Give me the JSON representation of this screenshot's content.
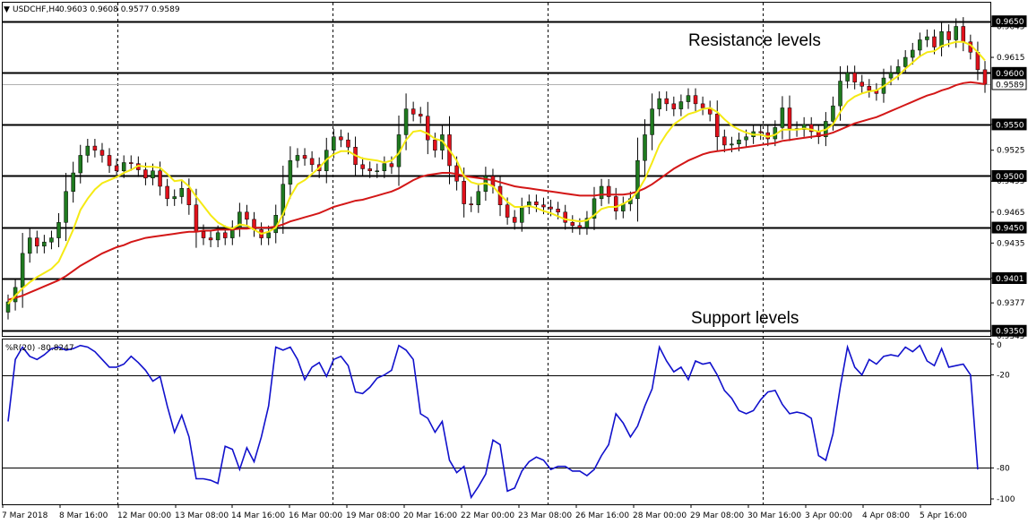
{
  "header": {
    "symbol": "USDCHF,H4",
    "ohlc": "0.9603 0.9608 0.9577 0.9589",
    "arrow": "▼"
  },
  "colors": {
    "background": "#ffffff",
    "bull_candle": "#1f7a1f",
    "bear_candle": "#e0111b",
    "ma_fast": "#f5ea14",
    "ma_slow": "#d31717",
    "oscillator": "#1111cc",
    "level_line": "#000000",
    "grid": "#000000"
  },
  "annotations": {
    "resistance": "Resistance levels",
    "support": "Support levels"
  },
  "chart_data": [
    {
      "type": "candlestick",
      "title": "USDCHF,H4",
      "ylim": [
        0.9345,
        0.9668
      ],
      "grid": "vertical dashed",
      "y_ticks": [
        "0.9645",
        "0.9615",
        "0.9550",
        "0.9525",
        "0.9495",
        "0.9465",
        "0.9435",
        "0.9401",
        "0.9377",
        "0.9345"
      ],
      "x_ticks": [
        "7 Mar 2018",
        "8 Mar 16:00",
        "12 Mar 00:00",
        "13 Mar 08:00",
        "14 Mar 16:00",
        "16 Mar 00:00",
        "19 Mar 08:00",
        "20 Mar 16:00",
        "22 Mar 00:00",
        "23 Mar 08:00",
        "26 Mar 16:00",
        "28 Mar 00:00",
        "29 Mar 08:00",
        "30 Mar 16:00",
        "3 Apr 00:00",
        "4 Apr 08:00",
        "5 Apr 16:00"
      ],
      "levels": [
        {
          "value": 0.965,
          "label": "0.9650"
        },
        {
          "value": 0.96,
          "label": "0.9600"
        },
        {
          "value": 0.955,
          "label": "0.9550"
        },
        {
          "value": 0.95,
          "label": "0.9500"
        },
        {
          "value": 0.945,
          "label": "0.9450"
        },
        {
          "value": 0.9401,
          "label": "0.9401"
        },
        {
          "value": 0.935,
          "label": "0.9350"
        }
      ],
      "current_price": {
        "value": 0.9589,
        "label": "0.9589"
      },
      "closes": [
        0.9378,
        0.9392,
        0.9425,
        0.944,
        0.9432,
        0.9436,
        0.944,
        0.9455,
        0.9485,
        0.9503,
        0.952,
        0.9529,
        0.9525,
        0.952,
        0.951,
        0.9505,
        0.9513,
        0.9512,
        0.9506,
        0.9498,
        0.9505,
        0.949,
        0.9478,
        0.948,
        0.9488,
        0.9472,
        0.9446,
        0.944,
        0.9438,
        0.9445,
        0.944,
        0.945,
        0.9465,
        0.9458,
        0.9448,
        0.944,
        0.9445,
        0.9462,
        0.9492,
        0.9515,
        0.952,
        0.9517,
        0.9511,
        0.9505,
        0.9525,
        0.9538,
        0.9535,
        0.9528,
        0.9511,
        0.9507,
        0.9505,
        0.9505,
        0.9512,
        0.9509,
        0.954,
        0.9565,
        0.956,
        0.9558,
        0.9535,
        0.9525,
        0.954,
        0.951,
        0.9495,
        0.9473,
        0.9472,
        0.9485,
        0.95,
        0.949,
        0.9472,
        0.946,
        0.9455,
        0.947,
        0.9475,
        0.9472,
        0.947,
        0.9468,
        0.9465,
        0.9455,
        0.9452,
        0.945,
        0.9459,
        0.9478,
        0.949,
        0.948,
        0.9466,
        0.9473,
        0.9478,
        0.9515,
        0.954,
        0.9565,
        0.9575,
        0.957,
        0.9565,
        0.9572,
        0.9578,
        0.957,
        0.9566,
        0.956,
        0.9538,
        0.953,
        0.9531,
        0.9535,
        0.9538,
        0.9543,
        0.9542,
        0.9536,
        0.9547,
        0.9566,
        0.9546,
        0.9545,
        0.955,
        0.9543,
        0.9538,
        0.9553,
        0.9568,
        0.9592,
        0.96,
        0.9591,
        0.9587,
        0.9583,
        0.958,
        0.9595,
        0.96,
        0.9606,
        0.9615,
        0.9622,
        0.9632,
        0.9635,
        0.9625,
        0.964,
        0.9632,
        0.9645,
        0.963,
        0.962,
        0.9603,
        0.9589
      ],
      "ma_fast_values": [
        0.9376,
        0.9384,
        0.9391,
        0.9397,
        0.9402,
        0.9406,
        0.941,
        0.9417,
        0.9432,
        0.9448,
        0.9467,
        0.9478,
        0.9487,
        0.9493,
        0.9496,
        0.9499,
        0.9503,
        0.9506,
        0.951,
        0.9509,
        0.9509,
        0.9508,
        0.9502,
        0.9495,
        0.9496,
        0.949,
        0.948,
        0.9471,
        0.9462,
        0.9455,
        0.9451,
        0.9449,
        0.9453,
        0.9452,
        0.9448,
        0.9444,
        0.9446,
        0.945,
        0.9463,
        0.948,
        0.9492,
        0.9496,
        0.9502,
        0.9508,
        0.9516,
        0.9521,
        0.9524,
        0.9524,
        0.952,
        0.9517,
        0.9516,
        0.9515,
        0.9513,
        0.9515,
        0.9522,
        0.9535,
        0.9543,
        0.9544,
        0.9541,
        0.9536,
        0.9534,
        0.9525,
        0.9515,
        0.95,
        0.9494,
        0.9492,
        0.9493,
        0.949,
        0.9482,
        0.9475,
        0.947,
        0.947,
        0.9471,
        0.9469,
        0.9466,
        0.9464,
        0.9461,
        0.9458,
        0.9457,
        0.9456,
        0.9457,
        0.9462,
        0.9468,
        0.947,
        0.947,
        0.9473,
        0.9477,
        0.9485,
        0.9497,
        0.9513,
        0.953,
        0.9541,
        0.955,
        0.9555,
        0.956,
        0.9562,
        0.9565,
        0.9566,
        0.9562,
        0.9555,
        0.9549,
        0.9545,
        0.9542,
        0.954,
        0.954,
        0.9538,
        0.954,
        0.9545,
        0.9545,
        0.9545,
        0.9546,
        0.9545,
        0.9543,
        0.9545,
        0.955,
        0.9562,
        0.9572,
        0.9577,
        0.958,
        0.9582,
        0.9583,
        0.9587,
        0.9592,
        0.9597,
        0.9604,
        0.961,
        0.9616,
        0.962,
        0.9621,
        0.9626,
        0.9628,
        0.963,
        0.963,
        0.9627,
        0.962,
        0.9612
      ],
      "ma_slow_values": [
        0.938,
        0.9382,
        0.9384,
        0.9387,
        0.939,
        0.9393,
        0.9396,
        0.9399,
        0.9403,
        0.9408,
        0.9413,
        0.9417,
        0.9421,
        0.9425,
        0.9428,
        0.9431,
        0.9433,
        0.9436,
        0.9438,
        0.944,
        0.9441,
        0.9442,
        0.9443,
        0.9444,
        0.9445,
        0.9446,
        0.9446,
        0.9447,
        0.9447,
        0.9448,
        0.9448,
        0.9448,
        0.9449,
        0.9449,
        0.945,
        0.945,
        0.945,
        0.9451,
        0.9453,
        0.9456,
        0.9458,
        0.946,
        0.9462,
        0.9464,
        0.9467,
        0.947,
        0.9472,
        0.9474,
        0.9476,
        0.9477,
        0.9479,
        0.9481,
        0.9483,
        0.9485,
        0.9488,
        0.9492,
        0.9496,
        0.9499,
        0.9501,
        0.9502,
        0.9503,
        0.9503,
        0.9502,
        0.95,
        0.9499,
        0.9498,
        0.9497,
        0.9496,
        0.9494,
        0.9492,
        0.949,
        0.9489,
        0.9488,
        0.9487,
        0.9486,
        0.9485,
        0.9484,
        0.9483,
        0.9482,
        0.9481,
        0.9481,
        0.9481,
        0.9482,
        0.9482,
        0.9482,
        0.9482,
        0.9483,
        0.9485,
        0.9488,
        0.9492,
        0.9497,
        0.9502,
        0.9507,
        0.9511,
        0.9515,
        0.9518,
        0.9521,
        0.9523,
        0.9524,
        0.9525,
        0.9526,
        0.9527,
        0.9528,
        0.9529,
        0.953,
        0.9531,
        0.9532,
        0.9534,
        0.9535,
        0.9536,
        0.9537,
        0.9538,
        0.9539,
        0.954,
        0.9542,
        0.9545,
        0.9548,
        0.9551,
        0.9553,
        0.9555,
        0.9557,
        0.956,
        0.9563,
        0.9566,
        0.9569,
        0.9572,
        0.9575,
        0.9578,
        0.958,
        0.9583,
        0.9585,
        0.9588,
        0.959,
        0.9591,
        0.959,
        0.9589
      ]
    },
    {
      "type": "line",
      "title": "%R(20) -80.8247",
      "ylim": [
        -100,
        0
      ],
      "y_ticks": [
        {
          "value": 0,
          "label": "0"
        },
        {
          "value": -20,
          "label": "-20"
        },
        {
          "value": -80,
          "label": "-80"
        },
        {
          "value": -100,
          "label": "-100"
        }
      ],
      "levels": [
        -20,
        -80
      ],
      "series": [
        {
          "values": [
            -50,
            -10,
            -2,
            -8,
            -10,
            -7,
            -3,
            -2,
            -4,
            -3,
            -1,
            -2,
            -5,
            -10,
            -15,
            -15,
            -13,
            -8,
            -12,
            -17,
            -24,
            -21,
            -40,
            -57,
            -46,
            -60,
            -87,
            -87,
            -88,
            -90,
            -66,
            -68,
            -81,
            -67,
            -76,
            -60,
            -40,
            -2,
            -4,
            -2,
            -10,
            -23,
            -15,
            -12,
            -21,
            -10,
            -8,
            -14,
            -31,
            -32,
            -28,
            -22,
            -20,
            -17,
            -1,
            -4,
            -10,
            -45,
            -48,
            -57,
            -50,
            -75,
            -83,
            -79,
            -99,
            -92,
            -84,
            -62,
            -65,
            -95,
            -93,
            -82,
            -76,
            -73,
            -75,
            -81,
            -79,
            -79,
            -82,
            -82,
            -85,
            -81,
            -72,
            -65,
            -45,
            -51,
            -60,
            -53,
            -40,
            -29,
            -2,
            -11,
            -18,
            -15,
            -23,
            -11,
            -13,
            -12,
            -20,
            -30,
            -35,
            -43,
            -45,
            -43,
            -36,
            -31,
            -30,
            -39,
            -45,
            -44,
            -45,
            -48,
            -72,
            -75,
            -58,
            -28,
            -2,
            -15,
            -20,
            -10,
            -13,
            -8,
            -7,
            -8,
            -2,
            -5,
            -1,
            -11,
            -14,
            -3,
            -15,
            -14,
            -13,
            -20,
            -81
          ]
        }
      ]
    }
  ]
}
